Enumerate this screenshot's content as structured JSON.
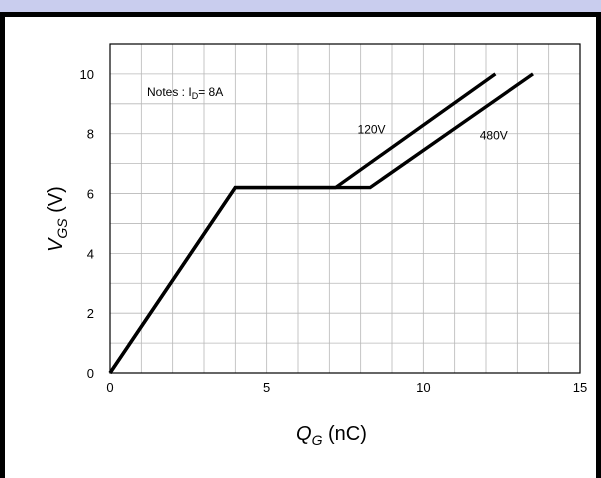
{
  "chart_data": {
    "type": "line",
    "title": "",
    "xlabel": {
      "symbol": "Q",
      "subscript": "G",
      "unit": " (nC)"
    },
    "ylabel": {
      "symbol": "V",
      "subscript": "GS",
      "unit": " (V)"
    },
    "xlim": [
      0,
      15
    ],
    "ylim": [
      0,
      11
    ],
    "x_ticks": [
      0,
      5,
      10,
      15
    ],
    "y_ticks": [
      0,
      2,
      4,
      6,
      8,
      10
    ],
    "grid": true,
    "notes": {
      "prefix": "Notes : I",
      "subscript": "D",
      "suffix": "= 8A"
    },
    "series": [
      {
        "name": "120V",
        "points": [
          [
            0,
            0
          ],
          [
            4.0,
            6.2
          ],
          [
            7.2,
            6.2
          ],
          [
            12.3,
            10.0
          ]
        ]
      },
      {
        "name": "480V",
        "points": [
          [
            0,
            0
          ],
          [
            4.0,
            6.2
          ],
          [
            8.3,
            6.2
          ],
          [
            13.5,
            10.0
          ]
        ]
      }
    ],
    "colors": {
      "line": "#000000",
      "grid": "#b8b8b8",
      "header": "#c9cdee"
    }
  }
}
